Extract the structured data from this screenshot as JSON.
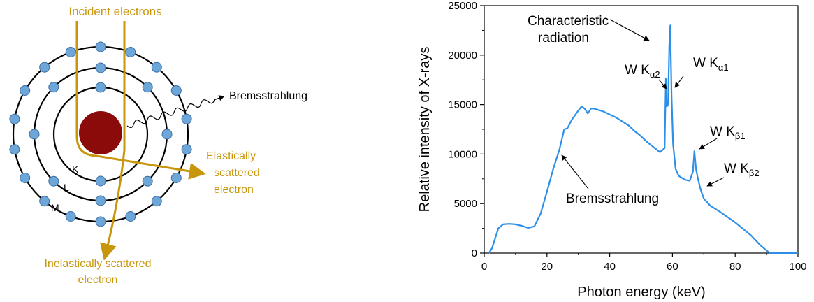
{
  "atom_diagram": {
    "incident_label": "Incident electrons",
    "bremsstrahlung_label": "Bremsstrahlung",
    "elastic_label": [
      "Elastically",
      "scattered",
      "electron"
    ],
    "inelastic_label": [
      "Inelastically scattered",
      "electron"
    ],
    "shells": [
      {
        "name": "K",
        "electrons": 2
      },
      {
        "name": "L",
        "electrons": 8
      },
      {
        "name": "M",
        "electrons": 18
      }
    ],
    "colors": {
      "nucleus": "#8b0a0a",
      "electron": "#6fa6d8",
      "electron_stroke": "#3a6ea5",
      "path": "#c8960c",
      "orbit": "#000000"
    }
  },
  "chart_data": {
    "type": "line",
    "xlabel": "Photon energy (keV)",
    "ylabel": "Relative intensity of X-rays",
    "xlim": [
      0,
      100
    ],
    "ylim": [
      0,
      25000
    ],
    "xticks": [
      0,
      20,
      40,
      60,
      80,
      100
    ],
    "yticks": [
      0,
      5000,
      10000,
      15000,
      20000,
      25000
    ],
    "line_color": "#2e8fe8",
    "series": [
      {
        "x": [
          1.5,
          2.5,
          3.5,
          4.5,
          6,
          8,
          10,
          12,
          14,
          16,
          18,
          20,
          22,
          24,
          25.5,
          26.5,
          28,
          30,
          31,
          32,
          33,
          34,
          35,
          36,
          38,
          40,
          42,
          44,
          46,
          48,
          50,
          52,
          54,
          56,
          57.5,
          57.9,
          58.2,
          58.6,
          59,
          59.3,
          59.7,
          60.2,
          61,
          62,
          64,
          65.5,
          66.5,
          67,
          67.5,
          68.2,
          69,
          70,
          72,
          75,
          80,
          85,
          88,
          91,
          93,
          100
        ],
        "y": [
          0,
          500,
          1500,
          2500,
          2900,
          2950,
          2900,
          2750,
          2550,
          2700,
          4000,
          6200,
          8500,
          10500,
          12500,
          12600,
          13500,
          14400,
          14800,
          14600,
          14100,
          14600,
          14600,
          14500,
          14300,
          14000,
          13700,
          13300,
          12900,
          12300,
          11800,
          11200,
          10700,
          10200,
          10600,
          17600,
          14800,
          15000,
          21000,
          23000,
          16000,
          11000,
          8500,
          7800,
          7400,
          7300,
          8200,
          10300,
          8500,
          7400,
          6400,
          5500,
          4800,
          4200,
          3100,
          1800,
          800,
          0,
          0,
          0
        ]
      }
    ],
    "annotations": {
      "characteristic": [
        "Characteristic",
        "radiation"
      ],
      "ka2": {
        "prefix": "W K",
        "sub": "α2"
      },
      "ka1": {
        "prefix": "W K",
        "sub": "α1"
      },
      "kb1": {
        "prefix": "W K",
        "sub": "β1"
      },
      "kb2": {
        "prefix": "W K",
        "sub": "β2"
      },
      "brems": "Bremsstrahlung"
    }
  }
}
